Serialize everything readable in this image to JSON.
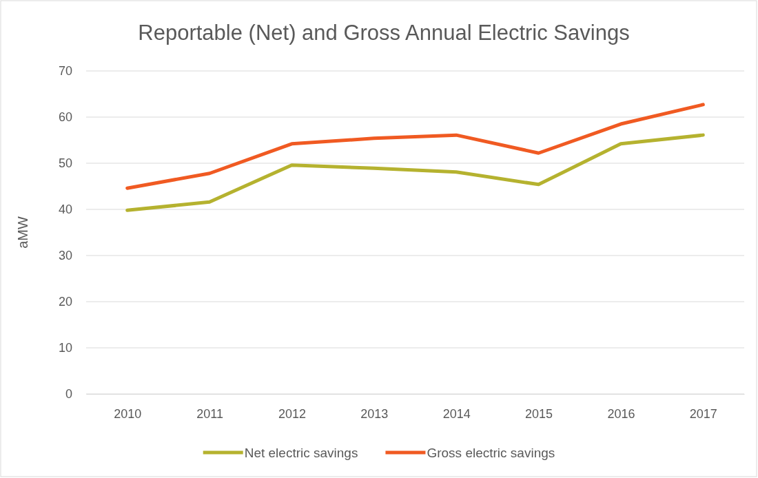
{
  "chart_data": {
    "type": "line",
    "title": "Reportable (Net) and Gross Annual Electric Savings",
    "ylabel": "aMW",
    "categories": [
      "2010",
      "2011",
      "2012",
      "2013",
      "2014",
      "2015",
      "2016",
      "2017"
    ],
    "series": [
      {
        "name": "Net electric savings",
        "color": "#b5b22f",
        "values": [
          39.8,
          41.6,
          49.6,
          48.9,
          48.1,
          45.4,
          54.2,
          56.1
        ]
      },
      {
        "name": "Gross electric savings",
        "color": "#f05a22",
        "values": [
          44.6,
          47.8,
          54.2,
          55.4,
          56.1,
          52.2,
          58.5,
          62.7
        ]
      }
    ],
    "ylim": [
      0,
      70
    ],
    "yticks": [
      0,
      10,
      20,
      30,
      40,
      50,
      60,
      70
    ],
    "grid": "y",
    "legend": "bottom",
    "marker": "none",
    "line_style": "solid"
  }
}
